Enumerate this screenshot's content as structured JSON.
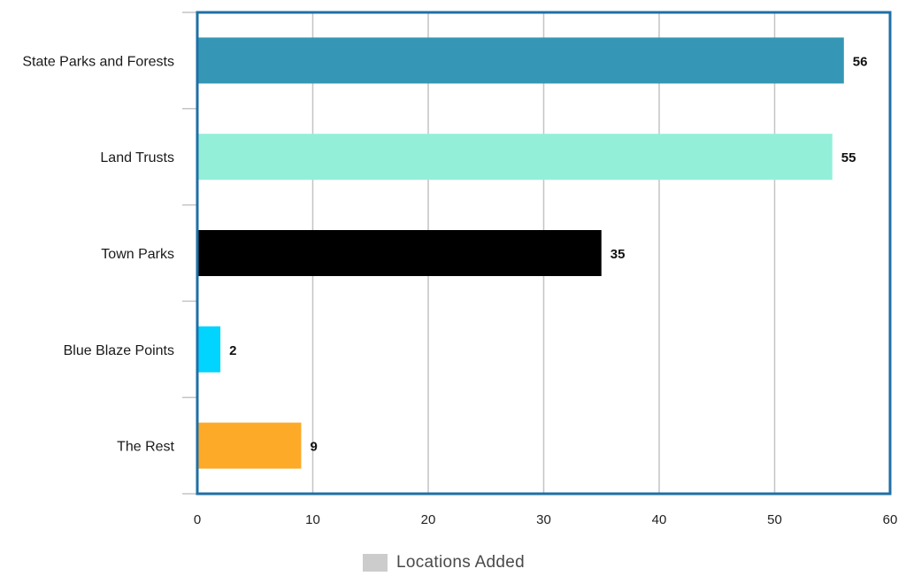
{
  "chart_data": {
    "type": "bar",
    "orientation": "horizontal",
    "categories": [
      "State Parks and Forests",
      "Land Trusts",
      "Town Parks",
      "Blue Blaze Points",
      "The Rest"
    ],
    "series": [
      {
        "name": "Locations Added",
        "values": [
          56,
          55,
          35,
          2,
          9
        ],
        "colors": [
          "#3597b5",
          "#94efd9",
          "#000000",
          "#00d4ff",
          "#fcaa28"
        ]
      }
    ],
    "data_labels": [
      "56",
      "55",
      "35",
      "2",
      "9"
    ],
    "xlim": [
      0,
      60
    ],
    "xticks": [
      0,
      10,
      20,
      30,
      40,
      50,
      60
    ],
    "xtick_labels": [
      "0",
      "10",
      "20",
      "30",
      "40",
      "50",
      "60"
    ],
    "grid": "vertical",
    "legend_position": "bottom-center",
    "legend_swatch_color": "#cccccc",
    "frame_color": "#1f6fa6",
    "title": "",
    "xlabel": "",
    "ylabel": ""
  },
  "legend": {
    "label": "Locations Added"
  }
}
